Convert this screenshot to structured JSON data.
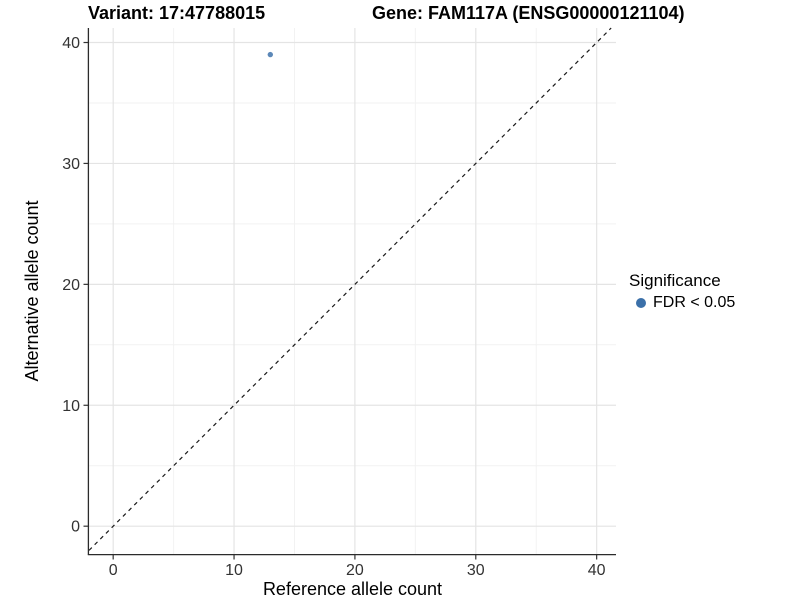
{
  "chart_data": {
    "type": "scatter",
    "title": {
      "variant": "Variant: 17:47788015",
      "gene": "Gene: FAM117A (ENSG00000121104)"
    },
    "xlabel": "Reference allele count",
    "ylabel": "Alternative allele count",
    "xlim": [
      -2.0,
      41.6
    ],
    "ylim": [
      -2.3,
      41.2
    ],
    "xticks": [
      0,
      10,
      20,
      30,
      40
    ],
    "yticks": [
      0,
      10,
      20,
      30,
      40
    ],
    "xticks_minor": [
      5,
      15,
      25,
      35
    ],
    "yticks_minor": [
      5,
      15,
      25,
      35
    ],
    "grid": "major and minor, light gray on white",
    "points": [
      {
        "x": 13,
        "y": 39,
        "significance": "FDR < 0.05"
      }
    ],
    "identity_line": {
      "style": "dashed",
      "slope": 1,
      "intercept": 0
    },
    "legend": {
      "title": "Significance",
      "position": "right",
      "items": [
        {
          "label": "FDR < 0.05",
          "marker": "circle",
          "color": "#3B70A9"
        }
      ]
    },
    "colors": {
      "point": "#4A7BB0",
      "legend_point": "#3B70A9",
      "grid_major": "#E4E4E4",
      "grid_minor": "#F2F2F2",
      "axis_line": "#2B2B2B",
      "tick_mark": "#333333",
      "tick_text": "#333333",
      "identity_line": "#1A1A1A",
      "background": "#FFFFFF"
    }
  }
}
